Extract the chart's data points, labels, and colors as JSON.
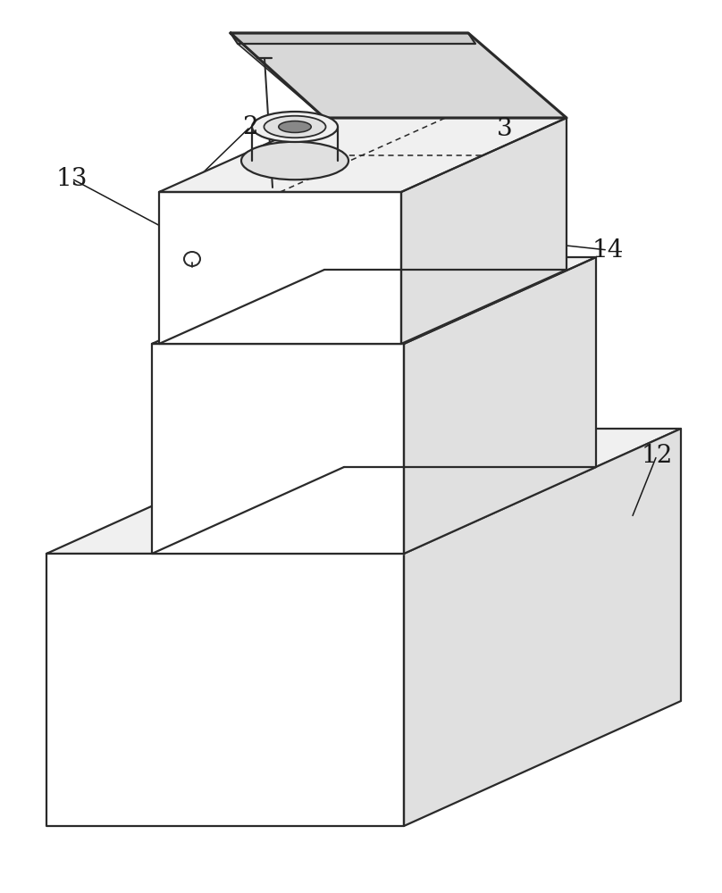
{
  "bg_color": "#ffffff",
  "line_color": "#2a2a2a",
  "fill_white": "#ffffff",
  "fill_light": "#f0f0f0",
  "fill_mid": "#e0e0e0",
  "fill_dark": "#cccccc",
  "fill_lid": "#d8d8d8",
  "line_width": 1.6,
  "label_fontsize": 20,
  "label_color": "#1a1a1a",
  "annotation_lw": 1.1
}
